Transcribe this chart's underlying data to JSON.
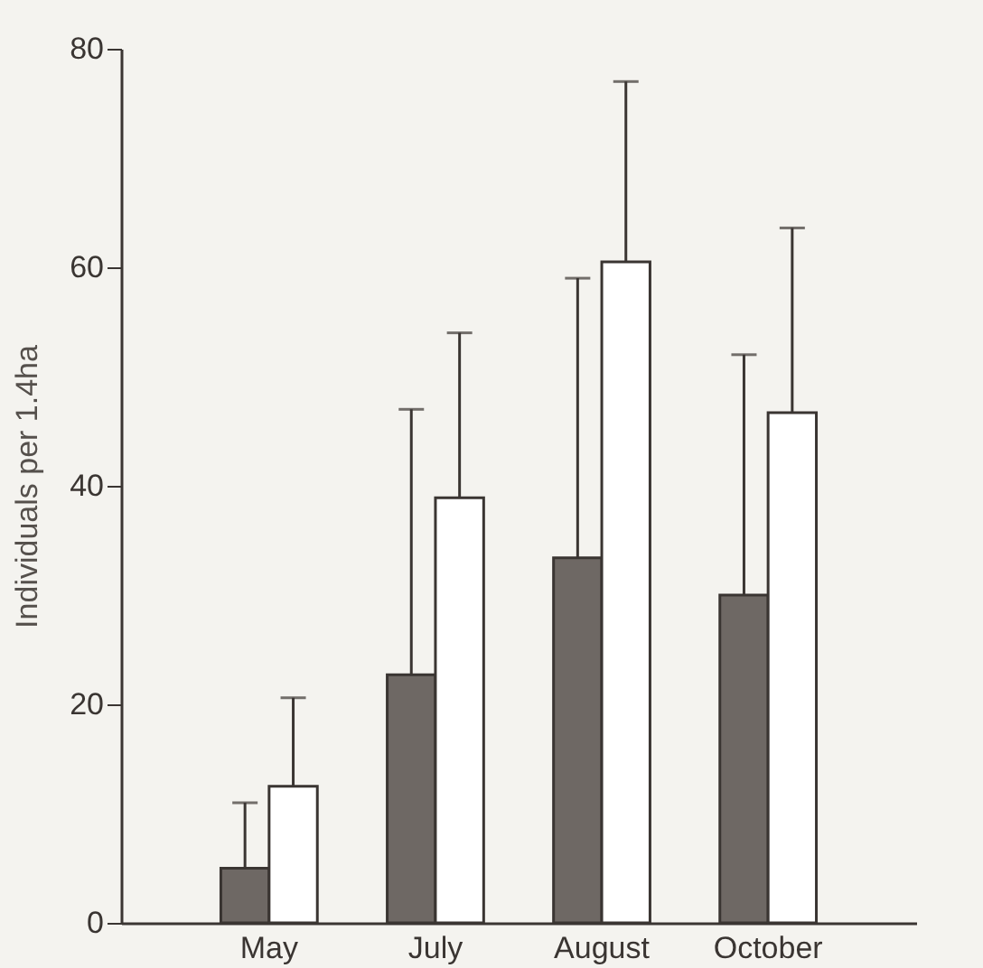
{
  "chart_data": {
    "type": "bar",
    "ylabel": "Individuals per 1.4ha",
    "categories": [
      "May",
      "July",
      "August",
      "October"
    ],
    "series": [
      {
        "color": "#6e6864",
        "values": [
          5,
          22.7,
          33.4,
          30
        ],
        "errors": [
          [
            5,
            11
          ],
          [
            22.7,
            47
          ],
          [
            33.4,
            59
          ],
          [
            30,
            52
          ]
        ]
      },
      {
        "color": "#ffffff",
        "values": [
          12.5,
          38.9,
          60.5,
          46.7
        ],
        "errors": [
          [
            12.5,
            20.6
          ],
          [
            38.9,
            54
          ],
          [
            60.5,
            77
          ],
          [
            46.7,
            63.6
          ]
        ]
      }
    ],
    "ylim": [
      0,
      80
    ],
    "yticks": [
      0,
      20,
      40,
      60,
      80
    ],
    "grid": false,
    "legend": false
  }
}
